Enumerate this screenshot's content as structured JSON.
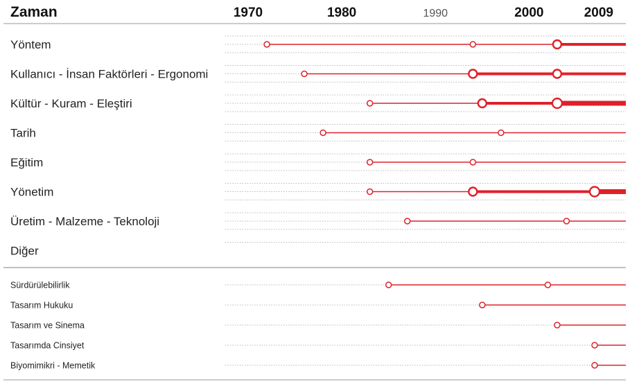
{
  "chart_data": {
    "type": "timeline",
    "header_label": "Zaman",
    "x_ticks": [
      {
        "year": 1970,
        "label": "1970",
        "bold": true
      },
      {
        "year": 1980,
        "label": "1980",
        "bold": true
      },
      {
        "year": 1990,
        "label": "1990",
        "bold": false
      },
      {
        "year": 2000,
        "label": "2000",
        "bold": true
      },
      {
        "year": 2009,
        "label": "2009",
        "bold": true
      }
    ],
    "xlim": [
      1970,
      2009
    ],
    "colors": {
      "accent": "#e0202a",
      "text": "#222222",
      "tick_bold": "#111111",
      "tick_light": "#555555",
      "dotted": "#b8b8b8",
      "divider": "#9a9a9a"
    },
    "main_groups": [
      {
        "label": "Yöntem",
        "markers": [
          {
            "year": 1972,
            "size": 1
          },
          {
            "year": 1994,
            "size": 1
          },
          {
            "year": 2003,
            "size": 2
          }
        ]
      },
      {
        "label": "Kullanıcı - İnsan Faktörleri - Ergonomi",
        "markers": [
          {
            "year": 1976,
            "size": 1
          },
          {
            "year": 1994,
            "size": 2
          },
          {
            "year": 2003,
            "size": 2
          }
        ]
      },
      {
        "label": "Kültür - Kuram - Eleştiri",
        "markers": [
          {
            "year": 1983,
            "size": 1
          },
          {
            "year": 1995,
            "size": 2
          },
          {
            "year": 2003,
            "size": 3
          }
        ]
      },
      {
        "label": "Tarih",
        "markers": [
          {
            "year": 1978,
            "size": 1
          },
          {
            "year": 1997,
            "size": 1
          }
        ]
      },
      {
        "label": "Eğitim",
        "markers": [
          {
            "year": 1983,
            "size": 1
          },
          {
            "year": 1994,
            "size": 1
          }
        ]
      },
      {
        "label": "Yönetim",
        "markers": [
          {
            "year": 1983,
            "size": 1
          },
          {
            "year": 1994,
            "size": 2
          },
          {
            "year": 2007,
            "size": 3
          }
        ]
      },
      {
        "label": "Üretim - Malzeme - Teknoloji",
        "markers": [
          {
            "year": 1987,
            "size": 1
          },
          {
            "year": 2004,
            "size": 1
          }
        ]
      },
      {
        "label": "Diğer",
        "markers": []
      }
    ],
    "sub_groups": [
      {
        "label": "Sürdürülebilirlik",
        "markers": [
          {
            "year": 1985,
            "size": 1
          },
          {
            "year": 2002,
            "size": 1
          }
        ]
      },
      {
        "label": "Tasarım Hukuku",
        "markers": [
          {
            "year": 1995,
            "size": 1
          }
        ]
      },
      {
        "label": "Tasarım ve Sinema",
        "markers": [
          {
            "year": 2003,
            "size": 1
          }
        ]
      },
      {
        "label": "Tasarımda Cinsiyet",
        "markers": [
          {
            "year": 2007,
            "size": 1
          }
        ]
      },
      {
        "label": "Biyomimikri - Memetik",
        "markers": [
          {
            "year": 2007,
            "size": 1
          }
        ]
      }
    ]
  }
}
